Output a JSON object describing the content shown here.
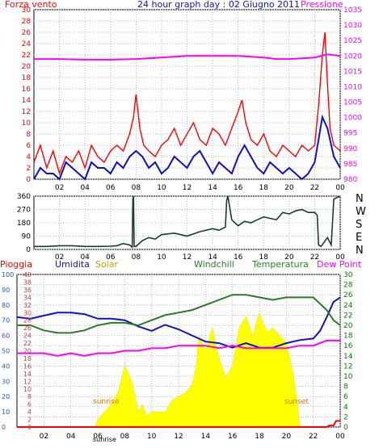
{
  "title": "24 hour graph day : 02 Giugno 2011",
  "colors": {
    "wind": "#ff0000",
    "gust_line": "#1010cc",
    "pressure": "#ff00ff",
    "direction": "#1a3a3a",
    "humidity": "#1010cc",
    "solar": "#ffff00",
    "windchill": "#2a7a2a",
    "temperature": "#1a8a1a",
    "dewpoint": "#ff00ff",
    "rain": "#ff0000",
    "pioggia_axis": "#2a5ab0",
    "umidita_axis": "#c04040",
    "temp_axis": "#0a7a0a",
    "grid": "#bbbbbb"
  },
  "chart_data": [
    {
      "type": "line",
      "panel": "wind_pressure",
      "title": "24 hour graph day : 02 Giugno 2011",
      "left_label": "Forza vento",
      "right_label": "Pressione",
      "x_ticks": [
        "02",
        "04",
        "06",
        "08",
        "10",
        "12",
        "14",
        "16",
        "18",
        "20",
        "22",
        "00"
      ],
      "y_left_ticks": [
        0,
        2,
        4,
        6,
        8,
        10,
        12,
        14,
        16,
        18,
        20,
        22,
        24,
        26,
        28,
        30
      ],
      "y_left_range": [
        0,
        30
      ],
      "y_right_ticks": [
        980,
        985,
        990,
        995,
        1000,
        1005,
        1010,
        1015,
        1020,
        1025,
        1030,
        1035
      ],
      "y_right_range": [
        980,
        1035
      ],
      "x_range_hours": [
        0,
        24
      ],
      "series": [
        {
          "role": "wind_gust",
          "color": "#ff0000",
          "x": [
            0,
            0.5,
            1,
            1.5,
            2,
            2.5,
            3,
            3.5,
            4,
            4.5,
            5,
            5.5,
            6,
            6.5,
            7,
            7.5,
            7.8,
            8,
            8.3,
            8.6,
            9,
            9.5,
            10,
            10.5,
            11,
            11.5,
            12,
            12.5,
            13,
            13.5,
            14,
            14.5,
            15,
            15.5,
            16,
            16.3,
            16.6,
            17,
            17.5,
            18,
            18.5,
            19,
            19.5,
            20,
            20.5,
            21,
            21.5,
            22,
            22.3,
            22.6,
            22.8,
            23,
            23.2,
            23.5,
            24
          ],
          "values": [
            3,
            6,
            2,
            5,
            1,
            4,
            3,
            5,
            2,
            6,
            4,
            3,
            5,
            6,
            5,
            8,
            11,
            15,
            9,
            6,
            5,
            4,
            6,
            7,
            9,
            6,
            8,
            10,
            7,
            6,
            9,
            8,
            6,
            9,
            12,
            14,
            10,
            7,
            6,
            8,
            5,
            4,
            6,
            5,
            4,
            6,
            5,
            6,
            13,
            22,
            26,
            17,
            9,
            6,
            5
          ]
        },
        {
          "role": "wind_speed",
          "color": "#1010cc",
          "x": [
            0,
            0.5,
            1,
            1.5,
            2,
            2.5,
            3,
            3.5,
            4,
            4.5,
            5,
            5.5,
            6,
            6.5,
            7,
            7.5,
            8,
            8.5,
            9,
            9.5,
            10,
            10.5,
            11,
            11.5,
            12,
            12.5,
            13,
            13.5,
            14,
            14.5,
            15,
            15.5,
            16,
            16.5,
            17,
            17.5,
            18,
            18.5,
            19,
            19.5,
            20,
            20.5,
            21,
            21.5,
            22,
            22.3,
            22.6,
            23,
            23.5,
            24
          ],
          "values": [
            0,
            2,
            1,
            1,
            0,
            3,
            2,
            1,
            0,
            3,
            2,
            2,
            1,
            3,
            2,
            4,
            5,
            4,
            2,
            3,
            1,
            2,
            4,
            3,
            2,
            4,
            5,
            3,
            1,
            3,
            2,
            1,
            4,
            6,
            4,
            2,
            1,
            3,
            2,
            1,
            2,
            1,
            0,
            1,
            3,
            7,
            11,
            9,
            4,
            2
          ]
        },
        {
          "role": "pressure",
          "color": "#ff00ff",
          "x": [
            0,
            2,
            4,
            6,
            8,
            10,
            12,
            14,
            16,
            18,
            19,
            20,
            21,
            22,
            23,
            24
          ],
          "values": [
            1019,
            1019,
            1018.8,
            1018.8,
            1019,
            1019.5,
            1020,
            1020,
            1020,
            1019.5,
            1019,
            1019,
            1019.2,
            1019.5,
            1020.5,
            1020
          ]
        }
      ]
    },
    {
      "type": "line",
      "panel": "wind_direction",
      "right_label": [
        "N",
        "W",
        "S",
        "E",
        "N"
      ],
      "x_ticks": [
        "02",
        "04",
        "06",
        "08",
        "10",
        "12",
        "14",
        "16",
        "18",
        "20",
        "22",
        "00"
      ],
      "y_ticks": [
        0,
        90,
        180,
        270,
        360
      ],
      "y_range": [
        0,
        360
      ],
      "x_range_hours": [
        0,
        24
      ],
      "series": [
        {
          "role": "wind_direction",
          "color": "#1a3a3a",
          "x": [
            0,
            1,
            2,
            3,
            4,
            5,
            6,
            6.5,
            7,
            7.5,
            7.7,
            7.75,
            7.8,
            7.85,
            8,
            8.5,
            9,
            9.5,
            10,
            11,
            12,
            13,
            14,
            14.5,
            15,
            15.1,
            15.2,
            15.5,
            16,
            16.5,
            17,
            17.5,
            18,
            18.5,
            19,
            19.5,
            20,
            20.5,
            21,
            21.5,
            22,
            22.2,
            22.3,
            22.5,
            23,
            23.3,
            23.5,
            24
          ],
          "values": [
            20,
            20,
            25,
            25,
            20,
            20,
            22,
            25,
            40,
            30,
            15,
            340,
            360,
            20,
            20,
            60,
            80,
            70,
            100,
            110,
            90,
            120,
            140,
            130,
            150,
            330,
            360,
            200,
            160,
            190,
            180,
            200,
            220,
            210,
            200,
            250,
            240,
            260,
            270,
            250,
            250,
            230,
            30,
            20,
            80,
            30,
            340,
            360
          ]
        }
      ]
    },
    {
      "type": "line",
      "panel": "climate",
      "legend": [
        "Pioggia",
        "Umidita",
        "Solar",
        "Windchill",
        "Temperatura",
        "Dew Point"
      ],
      "legend_colors": [
        "#ff0000",
        "#1010cc",
        "#c8a000",
        "#2a7a2a",
        "#1a8a1a",
        "#ff00ff"
      ],
      "annotations": [
        "sunrise",
        "sunset",
        "sunrise"
      ],
      "x_ticks": [
        "02",
        "04",
        "06",
        "08",
        "10",
        "12",
        "14",
        "16",
        "18",
        "20",
        "22",
        "00"
      ],
      "y_pioggia_ticks": [
        0,
        10,
        20,
        30,
        40,
        50,
        60,
        70,
        80,
        90,
        100
      ],
      "y_pioggia_range": [
        0,
        100
      ],
      "y_umidita_ticks": [
        0,
        2,
        4,
        6,
        8,
        10,
        12,
        14,
        16,
        18,
        20,
        22,
        24,
        26,
        28,
        30,
        32,
        34,
        36,
        38,
        40
      ],
      "y_umidita_range": [
        0,
        40
      ],
      "y_temp_ticks": [
        0,
        2,
        4,
        6,
        8,
        10,
        12,
        14,
        16,
        18,
        20,
        22,
        24,
        26,
        28,
        30
      ],
      "y_temp_range": [
        0,
        30
      ],
      "x_range_hours": [
        0,
        24
      ],
      "series": [
        {
          "role": "humidity",
          "color": "#1010cc",
          "x": [
            0,
            1,
            2,
            3,
            4,
            5,
            6,
            7,
            8,
            9,
            10,
            11,
            12,
            13,
            14,
            15,
            16,
            17,
            18,
            19,
            20,
            21,
            22,
            22.5,
            23,
            23.5,
            24
          ],
          "values": [
            72,
            71,
            73,
            75,
            75,
            74,
            71,
            71,
            70,
            66,
            63,
            67,
            64,
            60,
            56,
            55,
            52,
            55,
            52,
            52,
            55,
            57,
            58,
            63,
            72,
            82,
            85
          ]
        },
        {
          "role": "windchill",
          "color": "#2a7a2a",
          "x": [
            0,
            1,
            2,
            3,
            4,
            5,
            6,
            7,
            8,
            9,
            10,
            11,
            12,
            13,
            14,
            15,
            16,
            17,
            18,
            19,
            20,
            21,
            22,
            23,
            23.5,
            24
          ],
          "values": [
            20,
            20,
            19,
            18.5,
            18.5,
            19,
            20,
            20.5,
            20.5,
            20,
            21,
            22,
            22.5,
            23,
            24,
            25,
            26,
            26,
            25.5,
            25,
            25.5,
            25.5,
            25.5,
            23,
            21,
            20
          ]
        },
        {
          "role": "dew_point",
          "color": "#ff00ff",
          "x": [
            0,
            1,
            2,
            3,
            4,
            5,
            6,
            7,
            8,
            9,
            10,
            11,
            12,
            13,
            14,
            15,
            16,
            17,
            18,
            19,
            20,
            21,
            22,
            23,
            24
          ],
          "values": [
            14.5,
            14.5,
            14.5,
            14,
            14.5,
            14,
            14.5,
            14.5,
            15,
            15,
            15.5,
            15.5,
            16,
            16,
            16,
            15.5,
            16,
            15.5,
            15.5,
            15.5,
            15.5,
            16,
            16,
            17,
            17
          ]
        },
        {
          "role": "solar",
          "color": "#ffff00",
          "x": [
            5.8,
            6,
            6.5,
            7,
            7.5,
            8,
            8.3,
            8.6,
            9,
            9.3,
            9.6,
            10,
            10.5,
            11,
            11.5,
            12,
            12.5,
            13,
            13.3,
            13.5,
            14,
            14.5,
            15,
            15.5,
            16,
            16.5,
            17,
            17.5,
            18,
            18.3,
            18.6,
            19,
            19.5,
            20,
            20.5,
            20.8,
            21
          ],
          "values": [
            0,
            2,
            4,
            6,
            9,
            16,
            14,
            11,
            4,
            6,
            3,
            4,
            4,
            4,
            7,
            8,
            9,
            11,
            16,
            24,
            20,
            26,
            18,
            13,
            16,
            26,
            29,
            24,
            30,
            27,
            25,
            26,
            24,
            22,
            14,
            7,
            0
          ]
        },
        {
          "role": "rain",
          "color": "#ff0000",
          "x": [
            0,
            23,
            23.2,
            23.5,
            23.7,
            24
          ],
          "values": [
            0,
            0,
            1,
            1,
            4,
            4
          ]
        }
      ]
    }
  ]
}
